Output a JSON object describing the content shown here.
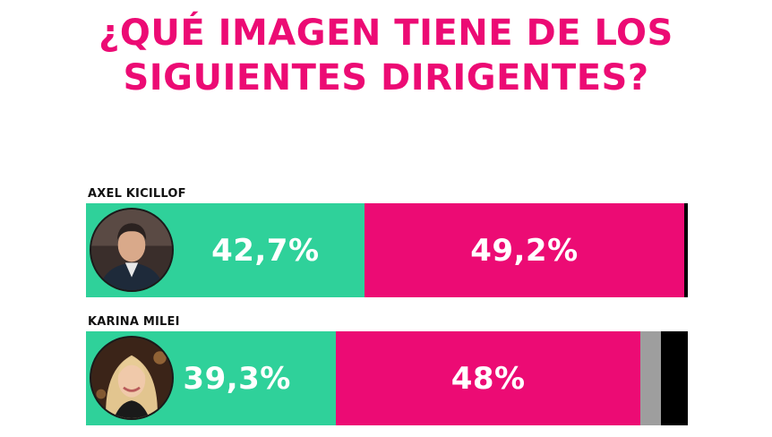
{
  "title": {
    "line1": "¿QUÉ IMAGEN TIENE DE LOS",
    "line2": "SIGUIENTES DIRIGENTES?"
  },
  "colors": {
    "title": "#ec0b74",
    "positive": "#2fd19a",
    "negative": "#ec0b74",
    "ns_nc": "#9e9e9e",
    "other": "#000000"
  },
  "chart_data": {
    "type": "bar",
    "orientation": "horizontal-stacked",
    "title": "¿QUÉ IMAGEN TIENE DE LOS SIGUIENTES DIRIGENTES?",
    "categories": [
      "AXEL KICILLOF",
      "KARINA MILEI"
    ],
    "series": [
      {
        "color": "#2fd19a",
        "values": [
          42.7,
          39.3
        ]
      },
      {
        "color": "#ec0b74",
        "values": [
          49.2,
          48.0
        ]
      },
      {
        "color": "#9e9e9e",
        "values": [
          0.0,
          3.2
        ]
      },
      {
        "color": "#000000",
        "values": [
          0.5,
          4.2
        ]
      }
    ],
    "labels": [
      [
        "42,7%",
        "49,2%"
      ],
      [
        "39,3%",
        "48%"
      ]
    ],
    "xlim": [
      0,
      100
    ]
  },
  "people": [
    {
      "name": "AXEL KICILLOF",
      "avatar_icon": "portrait-man-icon"
    },
    {
      "name": "KARINA MILEI",
      "avatar_icon": "portrait-woman-icon"
    }
  ]
}
